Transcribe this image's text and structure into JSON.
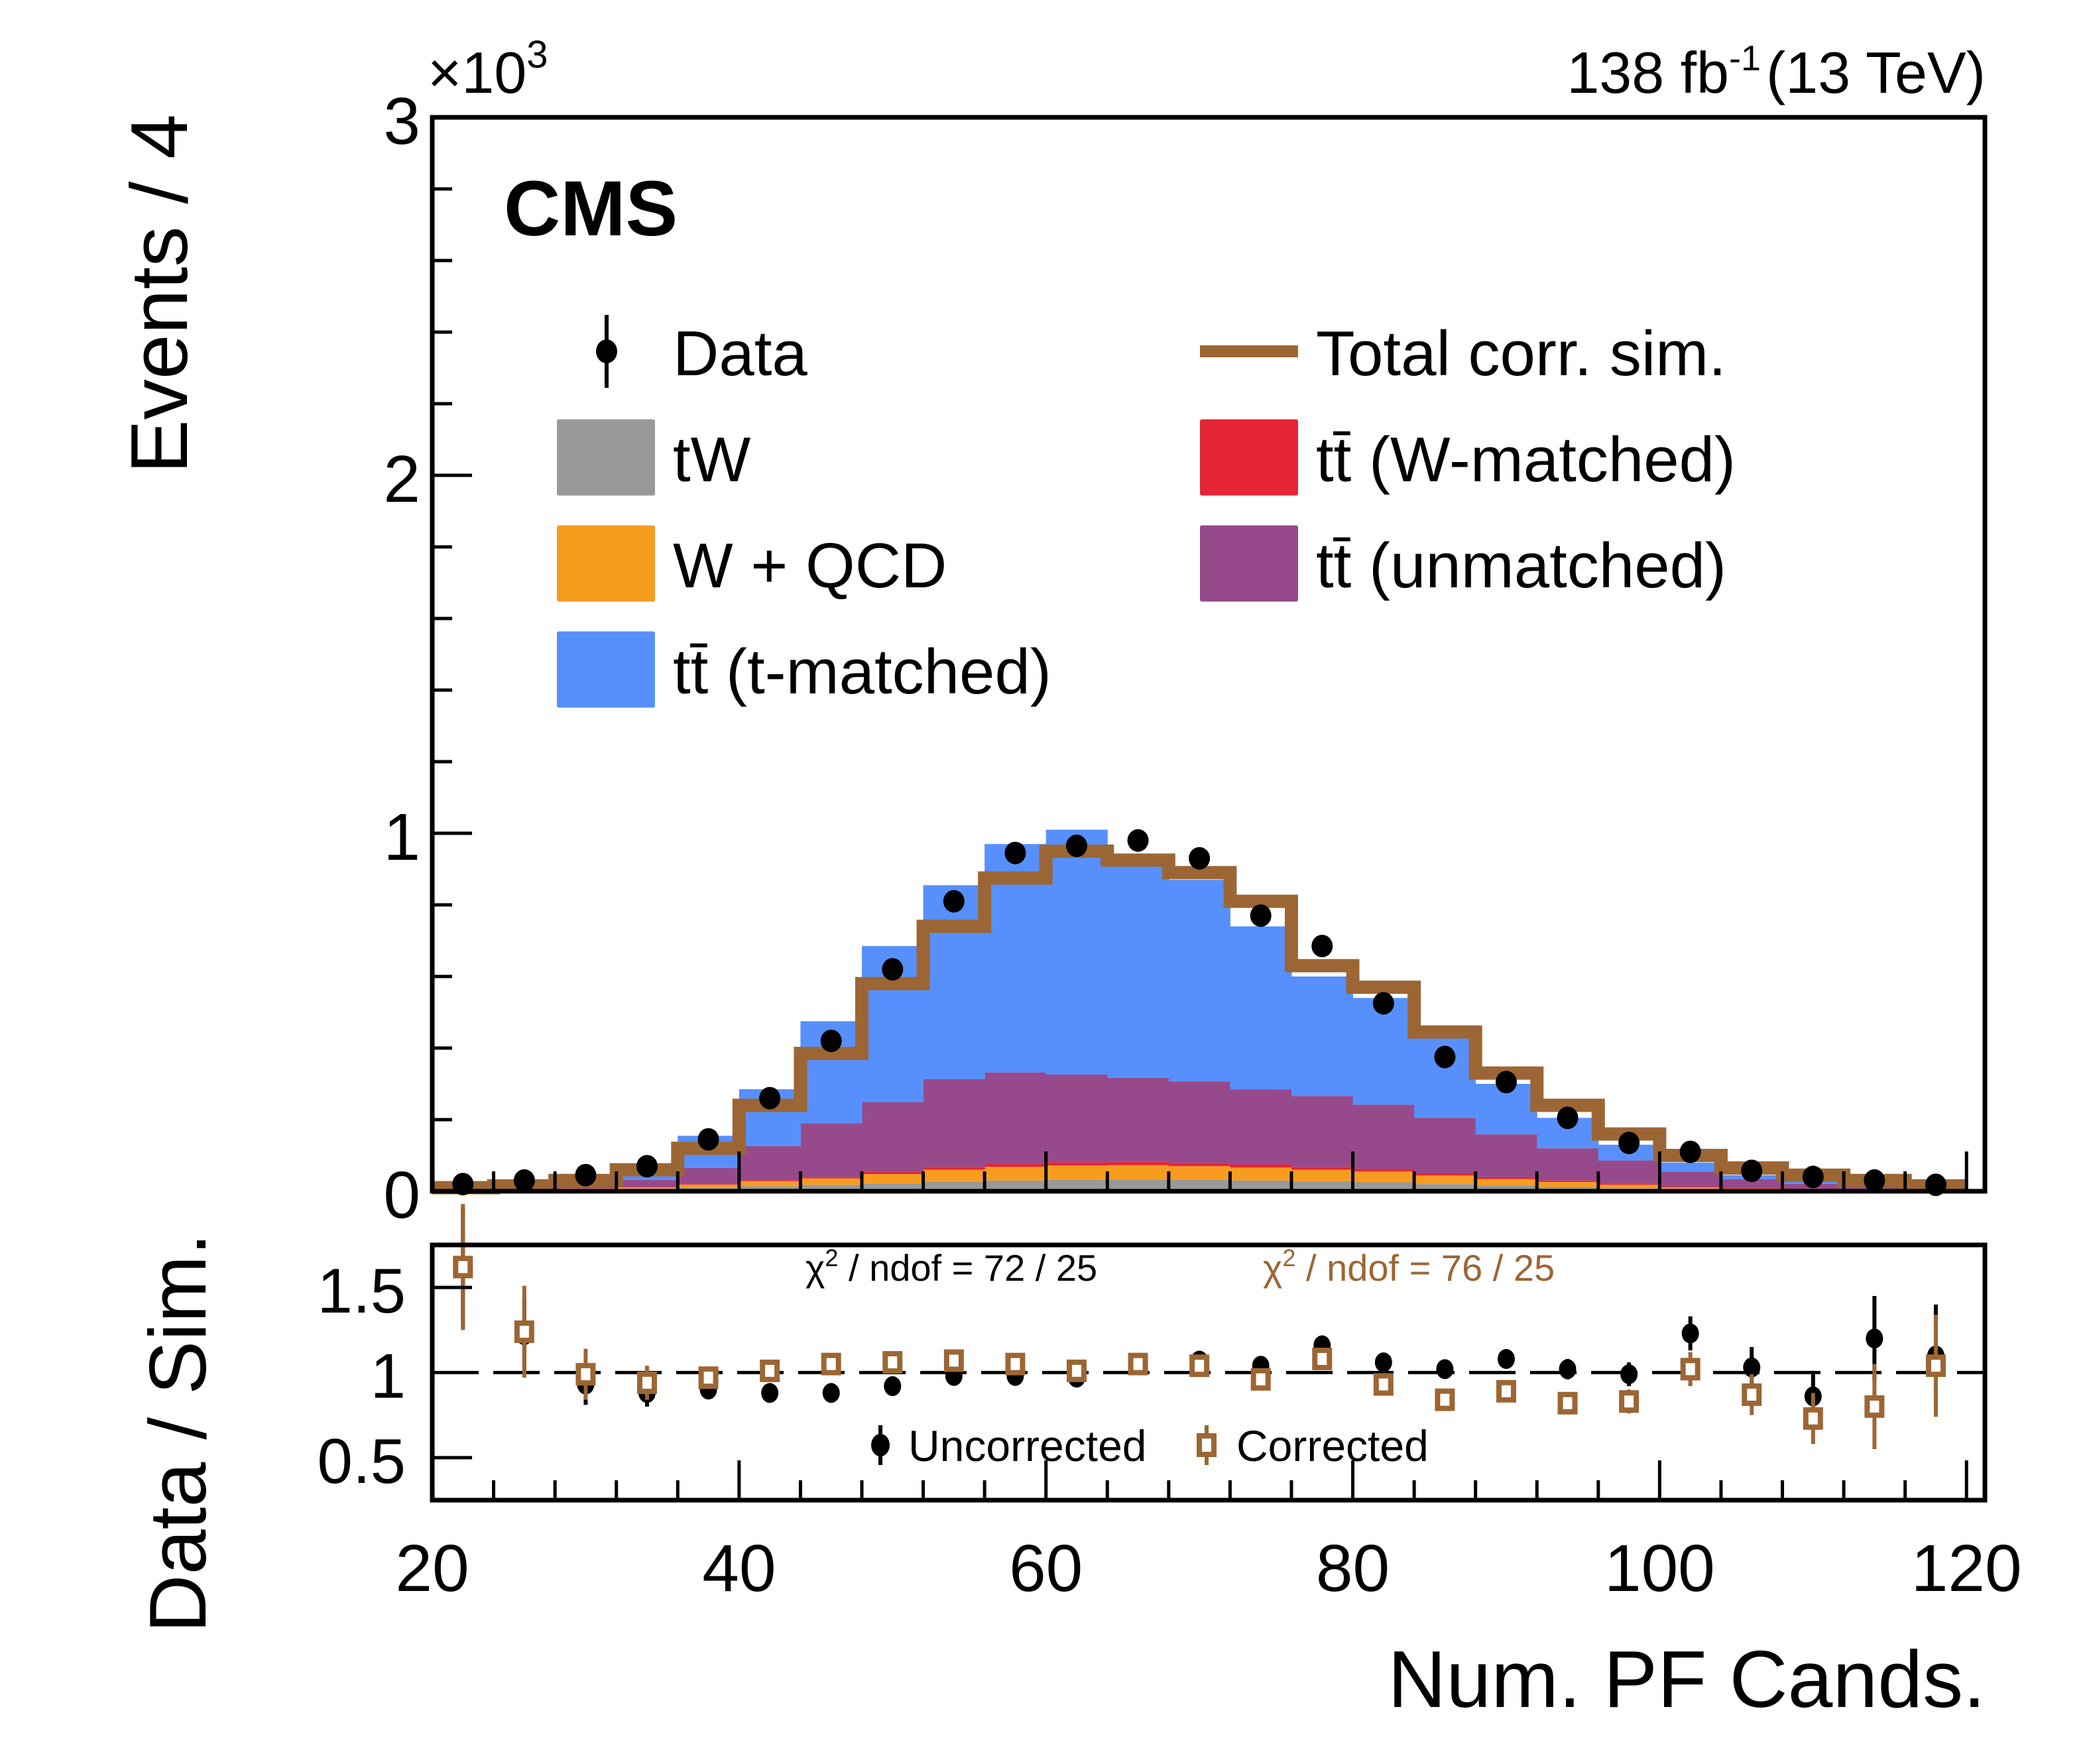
{
  "chart_data": {
    "type": "bar",
    "subtype": "stacked histogram with data points and ratio panel",
    "experiment_label": "CMS",
    "lumi_label": "138 fb",
    "lumi_exponent": "-1",
    "energy_label": "(13 TeV)",
    "ylabel_main": "Events / 4",
    "ylabel_ratio": "Data / Sim.",
    "xlabel": "Num. PF Cands.",
    "y_multiplier": "×10",
    "y_multiplier_exp": "3",
    "xlim": [
      20,
      121.2
    ],
    "ylim_main": [
      0,
      3000
    ],
    "ylim_ratio": [
      0.25,
      1.75
    ],
    "x_ticks": [
      20,
      40,
      60,
      80,
      100,
      120
    ],
    "y_ticks_main": [
      {
        "value": 0,
        "label": "0"
      },
      {
        "value": 1000,
        "label": "1"
      },
      {
        "value": 2000,
        "label": "2"
      },
      {
        "value": 3000,
        "label": "3"
      }
    ],
    "y_ticks_ratio": [
      {
        "value": 0.5,
        "label": "0.5"
      },
      {
        "value": 1.0,
        "label": "1"
      },
      {
        "value": 1.5,
        "label": "1.5"
      }
    ],
    "bin_edges": [
      20,
      24,
      28,
      32,
      36,
      40,
      44,
      48,
      52,
      56,
      60,
      64,
      68,
      72,
      76,
      80,
      84,
      88,
      92,
      96,
      100,
      104,
      108,
      112,
      116,
      120
    ],
    "stack": [
      {
        "name": "tW",
        "color": "#999999",
        "values": [
          1,
          2,
          4,
          6,
          10,
          14,
          18,
          22,
          26,
          30,
          32,
          33,
          32,
          30,
          28,
          25,
          20,
          16,
          12,
          8,
          5,
          3,
          2,
          1,
          1
        ]
      },
      {
        "name": "W + QCD",
        "color": "#F89C20",
        "values": [
          1,
          2,
          3,
          5,
          8,
          14,
          18,
          26,
          34,
          38,
          40,
          40,
          38,
          36,
          32,
          30,
          24,
          18,
          14,
          10,
          6,
          4,
          3,
          2,
          1
        ]
      },
      {
        "name": "tt̄ (W-matched)",
        "color": "#E42536",
        "values": [
          0,
          0,
          1,
          1,
          2,
          3,
          4,
          6,
          8,
          9,
          9,
          9,
          9,
          9,
          8,
          7,
          6,
          5,
          4,
          3,
          2,
          2,
          1,
          1,
          1
        ]
      },
      {
        "name": "tt̄ (unmatched)",
        "color": "#964A8B",
        "values": [
          3,
          4,
          10,
          20,
          45,
          95,
          150,
          195,
          245,
          255,
          245,
          235,
          228,
          210,
          198,
          180,
          155,
          120,
          90,
          65,
          42,
          25,
          15,
          10,
          5
        ]
      },
      {
        "name": "tt̄ (t-matched)",
        "color": "#5790FC",
        "values": [
          0,
          2,
          7,
          18,
          90,
          159,
          285,
          436,
          542,
          638,
          684,
          613,
          563,
          455,
          334,
          298,
          235,
          141,
          85,
          44,
          25,
          11,
          9,
          6,
          2
        ]
      }
    ],
    "total_corr_sim": {
      "name": "Total corr. sim.",
      "color": "#9C6634",
      "values": [
        10,
        15,
        30,
        60,
        120,
        240,
        385,
        580,
        740,
        875,
        950,
        925,
        890,
        810,
        630,
        570,
        445,
        330,
        240,
        160,
        100,
        65,
        45,
        30,
        15
      ]
    },
    "data": {
      "name": "Data",
      "color": "#000000",
      "x": [
        22,
        26,
        30,
        34,
        38,
        42,
        46,
        50,
        54,
        58,
        62,
        66,
        70,
        74,
        78,
        82,
        86,
        90,
        94,
        98,
        102,
        106,
        110,
        114,
        118
      ],
      "values": [
        20,
        30,
        45,
        70,
        145,
        260,
        420,
        620,
        810,
        945,
        965,
        980,
        930,
        770,
        685,
        525,
        375,
        305,
        205,
        135,
        110,
        57,
        40,
        30,
        18
      ]
    },
    "ratio": {
      "reference_line": 1.0,
      "uncorrected": {
        "name": "Uncorrected",
        "color": "#000000",
        "values": [
          1.62,
          1.22,
          0.93,
          0.88,
          0.9,
          0.88,
          0.88,
          0.92,
          0.98,
          0.98,
          0.97,
          1.05,
          1.07,
          1.04,
          1.16,
          1.06,
          1.02,
          1.08,
          1.02,
          0.99,
          1.23,
          1.03,
          0.86,
          1.2,
          1.1
        ],
        "errors": [
          0.35,
          0.22,
          0.12,
          0.08,
          0.05,
          0.03,
          0.02,
          0.02,
          0.02,
          0.02,
          0.02,
          0.02,
          0.02,
          0.02,
          0.03,
          0.03,
          0.04,
          0.05,
          0.06,
          0.07,
          0.1,
          0.12,
          0.15,
          0.25,
          0.3
        ]
      },
      "corrected": {
        "name": "Corrected",
        "color": "#9C6634",
        "values": [
          1.62,
          1.24,
          0.99,
          0.94,
          0.97,
          1.01,
          1.05,
          1.06,
          1.07,
          1.05,
          1.01,
          1.05,
          1.04,
          0.96,
          1.08,
          0.93,
          0.84,
          0.89,
          0.82,
          0.83,
          1.02,
          0.87,
          0.73,
          0.8,
          1.04
        ],
        "errors": [
          0.37,
          0.27,
          0.15,
          0.1,
          0.06,
          0.03,
          0.02,
          0.02,
          0.02,
          0.02,
          0.02,
          0.02,
          0.02,
          0.02,
          0.03,
          0.03,
          0.04,
          0.05,
          0.06,
          0.07,
          0.1,
          0.12,
          0.15,
          0.25,
          0.3
        ]
      },
      "chi2_uncorrected": "χ",
      "chi2_uncorrected_rest": " / ndof = 72 / 25",
      "chi2_corrected": "χ",
      "chi2_corrected_rest": " / ndof = 76 / 25",
      "chi2_exp": "2"
    },
    "legend": {
      "placement": "upper-left inside main panel, two columns",
      "entries": [
        {
          "label": "Data",
          "marker": "point"
        },
        {
          "label": "Total corr. sim.",
          "marker": "line"
        },
        {
          "label": "tW",
          "marker": "box"
        },
        {
          "label": "tt̄ (W-matched)",
          "marker": "box"
        },
        {
          "label": "W + QCD",
          "marker": "box"
        },
        {
          "label": "tt̄ (unmatched)",
          "marker": "box"
        },
        {
          "label": "tt̄ (t-matched)",
          "marker": "box"
        }
      ]
    },
    "ratio_legend": [
      {
        "label": "Uncorrected",
        "marker": "point"
      },
      {
        "label": "Corrected",
        "marker": "open-square"
      }
    ]
  }
}
